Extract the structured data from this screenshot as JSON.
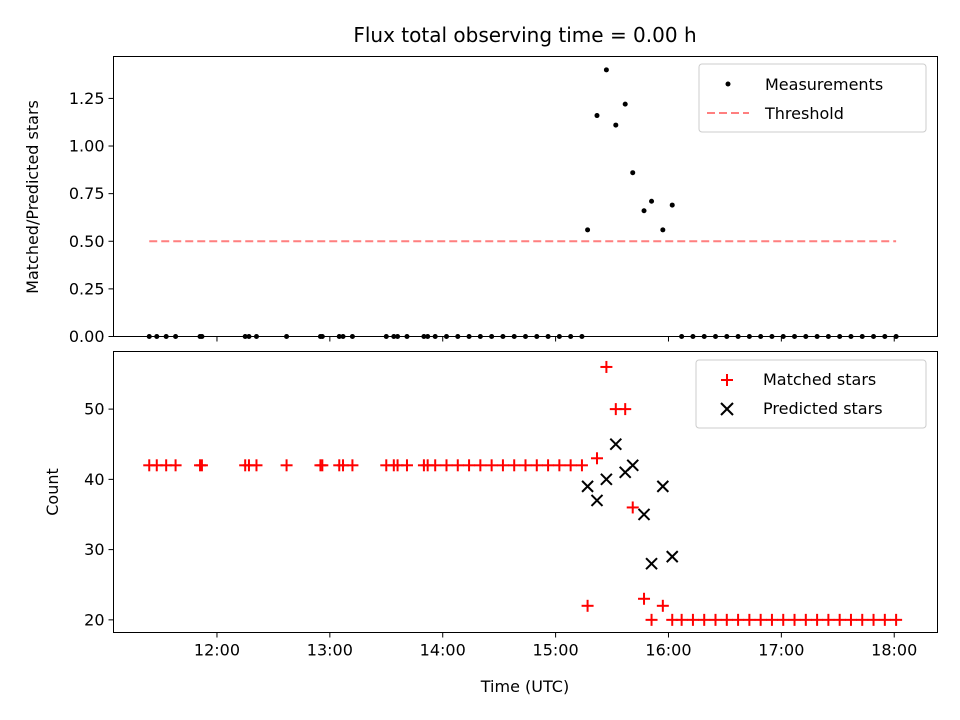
{
  "chart_data": [
    {
      "type": "scatter",
      "title": "Flux total observing time = 0.00 h",
      "xlabel": "",
      "ylabel": "Matched/Predicted stars",
      "xlim": [
        "11:05",
        "18:23"
      ],
      "ylim": [
        0,
        1.47
      ],
      "x_ticks": [
        "12:00",
        "13:00",
        "14:00",
        "15:00",
        "16:00",
        "17:00",
        "18:00"
      ],
      "y_ticks": [
        "0.00",
        "0.25",
        "0.50",
        "0.75",
        "1.00",
        "1.25"
      ],
      "legend": {
        "position": "top-right"
      },
      "series": [
        {
          "name": "Measurements",
          "kind": "points",
          "color": "#000000",
          "points": [
            {
              "x": "11:24",
              "y": 0
            },
            {
              "x": "11:28",
              "y": 0
            },
            {
              "x": "11:33",
              "y": 0
            },
            {
              "x": "11:38",
              "y": 0
            },
            {
              "x": "11:51",
              "y": 0
            },
            {
              "x": "11:52",
              "y": 0
            },
            {
              "x": "12:15",
              "y": 0
            },
            {
              "x": "12:17",
              "y": 0
            },
            {
              "x": "12:21",
              "y": 0
            },
            {
              "x": "12:37",
              "y": 0
            },
            {
              "x": "12:55",
              "y": 0
            },
            {
              "x": "12:56",
              "y": 0
            },
            {
              "x": "13:05",
              "y": 0
            },
            {
              "x": "13:07",
              "y": 0
            },
            {
              "x": "13:12",
              "y": 0
            },
            {
              "x": "13:30",
              "y": 0
            },
            {
              "x": "13:34",
              "y": 0
            },
            {
              "x": "13:36",
              "y": 0
            },
            {
              "x": "13:41",
              "y": 0
            },
            {
              "x": "13:50",
              "y": 0
            },
            {
              "x": "13:52",
              "y": 0
            },
            {
              "x": "13:56",
              "y": 0
            },
            {
              "x": "14:02",
              "y": 0
            },
            {
              "x": "14:08",
              "y": 0
            },
            {
              "x": "14:14",
              "y": 0
            },
            {
              "x": "14:20",
              "y": 0
            },
            {
              "x": "14:26",
              "y": 0
            },
            {
              "x": "14:32",
              "y": 0
            },
            {
              "x": "14:38",
              "y": 0
            },
            {
              "x": "14:44",
              "y": 0
            },
            {
              "x": "14:50",
              "y": 0
            },
            {
              "x": "14:56",
              "y": 0
            },
            {
              "x": "15:02",
              "y": 0
            },
            {
              "x": "15:08",
              "y": 0
            },
            {
              "x": "15:14",
              "y": 0
            },
            {
              "x": "15:17",
              "y": 0.56
            },
            {
              "x": "15:22",
              "y": 1.16
            },
            {
              "x": "15:27",
              "y": 1.4
            },
            {
              "x": "15:32",
              "y": 1.11
            },
            {
              "x": "15:37",
              "y": 1.22
            },
            {
              "x": "15:41",
              "y": 0.86
            },
            {
              "x": "15:47",
              "y": 0.66
            },
            {
              "x": "15:51",
              "y": 0.71
            },
            {
              "x": "15:57",
              "y": 0.56
            },
            {
              "x": "16:02",
              "y": 0.69
            },
            {
              "x": "16:07",
              "y": 0
            },
            {
              "x": "16:13",
              "y": 0
            },
            {
              "x": "16:19",
              "y": 0
            },
            {
              "x": "16:25",
              "y": 0
            },
            {
              "x": "16:31",
              "y": 0
            },
            {
              "x": "16:37",
              "y": 0
            },
            {
              "x": "16:43",
              "y": 0
            },
            {
              "x": "16:49",
              "y": 0
            },
            {
              "x": "16:55",
              "y": 0
            },
            {
              "x": "17:01",
              "y": 0
            },
            {
              "x": "17:07",
              "y": 0
            },
            {
              "x": "17:13",
              "y": 0
            },
            {
              "x": "17:19",
              "y": 0
            },
            {
              "x": "17:25",
              "y": 0
            },
            {
              "x": "17:31",
              "y": 0
            },
            {
              "x": "17:37",
              "y": 0
            },
            {
              "x": "17:43",
              "y": 0
            },
            {
              "x": "17:49",
              "y": 0
            },
            {
              "x": "17:55",
              "y": 0
            },
            {
              "x": "18:01",
              "y": 0
            }
          ]
        },
        {
          "name": "Threshold",
          "kind": "dashed-line",
          "color": "#ff7f7f",
          "points": [
            {
              "x": "11:24",
              "y": 0.5
            },
            {
              "x": "18:01",
              "y": 0.5
            }
          ]
        }
      ]
    },
    {
      "type": "scatter",
      "title": "",
      "xlabel": "Time (UTC)",
      "ylabel": "Count",
      "xlim": [
        "11:05",
        "18:23"
      ],
      "ylim": [
        18.2,
        58.2
      ],
      "x_ticks": [
        "12:00",
        "13:00",
        "14:00",
        "15:00",
        "16:00",
        "17:00",
        "18:00"
      ],
      "y_ticks": [
        "20",
        "30",
        "40",
        "50"
      ],
      "legend": {
        "position": "top-right"
      },
      "series": [
        {
          "name": "Matched stars",
          "kind": "plus",
          "color": "#ff0000",
          "points": [
            {
              "x": "11:24",
              "y": 42
            },
            {
              "x": "11:28",
              "y": 42
            },
            {
              "x": "11:33",
              "y": 42
            },
            {
              "x": "11:38",
              "y": 42
            },
            {
              "x": "11:51",
              "y": 42
            },
            {
              "x": "11:52",
              "y": 42
            },
            {
              "x": "12:15",
              "y": 42
            },
            {
              "x": "12:17",
              "y": 42
            },
            {
              "x": "12:21",
              "y": 42
            },
            {
              "x": "12:37",
              "y": 42
            },
            {
              "x": "12:55",
              "y": 42
            },
            {
              "x": "12:56",
              "y": 42
            },
            {
              "x": "13:05",
              "y": 42
            },
            {
              "x": "13:07",
              "y": 42
            },
            {
              "x": "13:12",
              "y": 42
            },
            {
              "x": "13:30",
              "y": 42
            },
            {
              "x": "13:34",
              "y": 42
            },
            {
              "x": "13:36",
              "y": 42
            },
            {
              "x": "13:41",
              "y": 42
            },
            {
              "x": "13:50",
              "y": 42
            },
            {
              "x": "13:52",
              "y": 42
            },
            {
              "x": "13:56",
              "y": 42
            },
            {
              "x": "14:02",
              "y": 42
            },
            {
              "x": "14:08",
              "y": 42
            },
            {
              "x": "14:14",
              "y": 42
            },
            {
              "x": "14:20",
              "y": 42
            },
            {
              "x": "14:26",
              "y": 42
            },
            {
              "x": "14:32",
              "y": 42
            },
            {
              "x": "14:38",
              "y": 42
            },
            {
              "x": "14:44",
              "y": 42
            },
            {
              "x": "14:50",
              "y": 42
            },
            {
              "x": "14:56",
              "y": 42
            },
            {
              "x": "15:02",
              "y": 42
            },
            {
              "x": "15:08",
              "y": 42
            },
            {
              "x": "15:14",
              "y": 42
            },
            {
              "x": "15:17",
              "y": 22
            },
            {
              "x": "15:22",
              "y": 43
            },
            {
              "x": "15:27",
              "y": 56
            },
            {
              "x": "15:32",
              "y": 50
            },
            {
              "x": "15:37",
              "y": 50
            },
            {
              "x": "15:41",
              "y": 36
            },
            {
              "x": "15:47",
              "y": 23
            },
            {
              "x": "15:51",
              "y": 20
            },
            {
              "x": "15:57",
              "y": 22
            },
            {
              "x": "16:02",
              "y": 20
            },
            {
              "x": "16:07",
              "y": 20
            },
            {
              "x": "16:13",
              "y": 20
            },
            {
              "x": "16:19",
              "y": 20
            },
            {
              "x": "16:25",
              "y": 20
            },
            {
              "x": "16:31",
              "y": 20
            },
            {
              "x": "16:37",
              "y": 20
            },
            {
              "x": "16:43",
              "y": 20
            },
            {
              "x": "16:49",
              "y": 20
            },
            {
              "x": "16:55",
              "y": 20
            },
            {
              "x": "17:01",
              "y": 20
            },
            {
              "x": "17:07",
              "y": 20
            },
            {
              "x": "17:13",
              "y": 20
            },
            {
              "x": "17:19",
              "y": 20
            },
            {
              "x": "17:25",
              "y": 20
            },
            {
              "x": "17:31",
              "y": 20
            },
            {
              "x": "17:37",
              "y": 20
            },
            {
              "x": "17:43",
              "y": 20
            },
            {
              "x": "17:49",
              "y": 20
            },
            {
              "x": "17:55",
              "y": 20
            },
            {
              "x": "18:01",
              "y": 20
            }
          ]
        },
        {
          "name": "Predicted stars",
          "kind": "x",
          "color": "#000000",
          "points": [
            {
              "x": "15:17",
              "y": 39
            },
            {
              "x": "15:22",
              "y": 37
            },
            {
              "x": "15:27",
              "y": 40
            },
            {
              "x": "15:32",
              "y": 45
            },
            {
              "x": "15:37",
              "y": 41
            },
            {
              "x": "15:41",
              "y": 42
            },
            {
              "x": "15:47",
              "y": 35
            },
            {
              "x": "15:51",
              "y": 28
            },
            {
              "x": "15:57",
              "y": 39
            },
            {
              "x": "16:02",
              "y": 29
            }
          ]
        }
      ]
    }
  ]
}
